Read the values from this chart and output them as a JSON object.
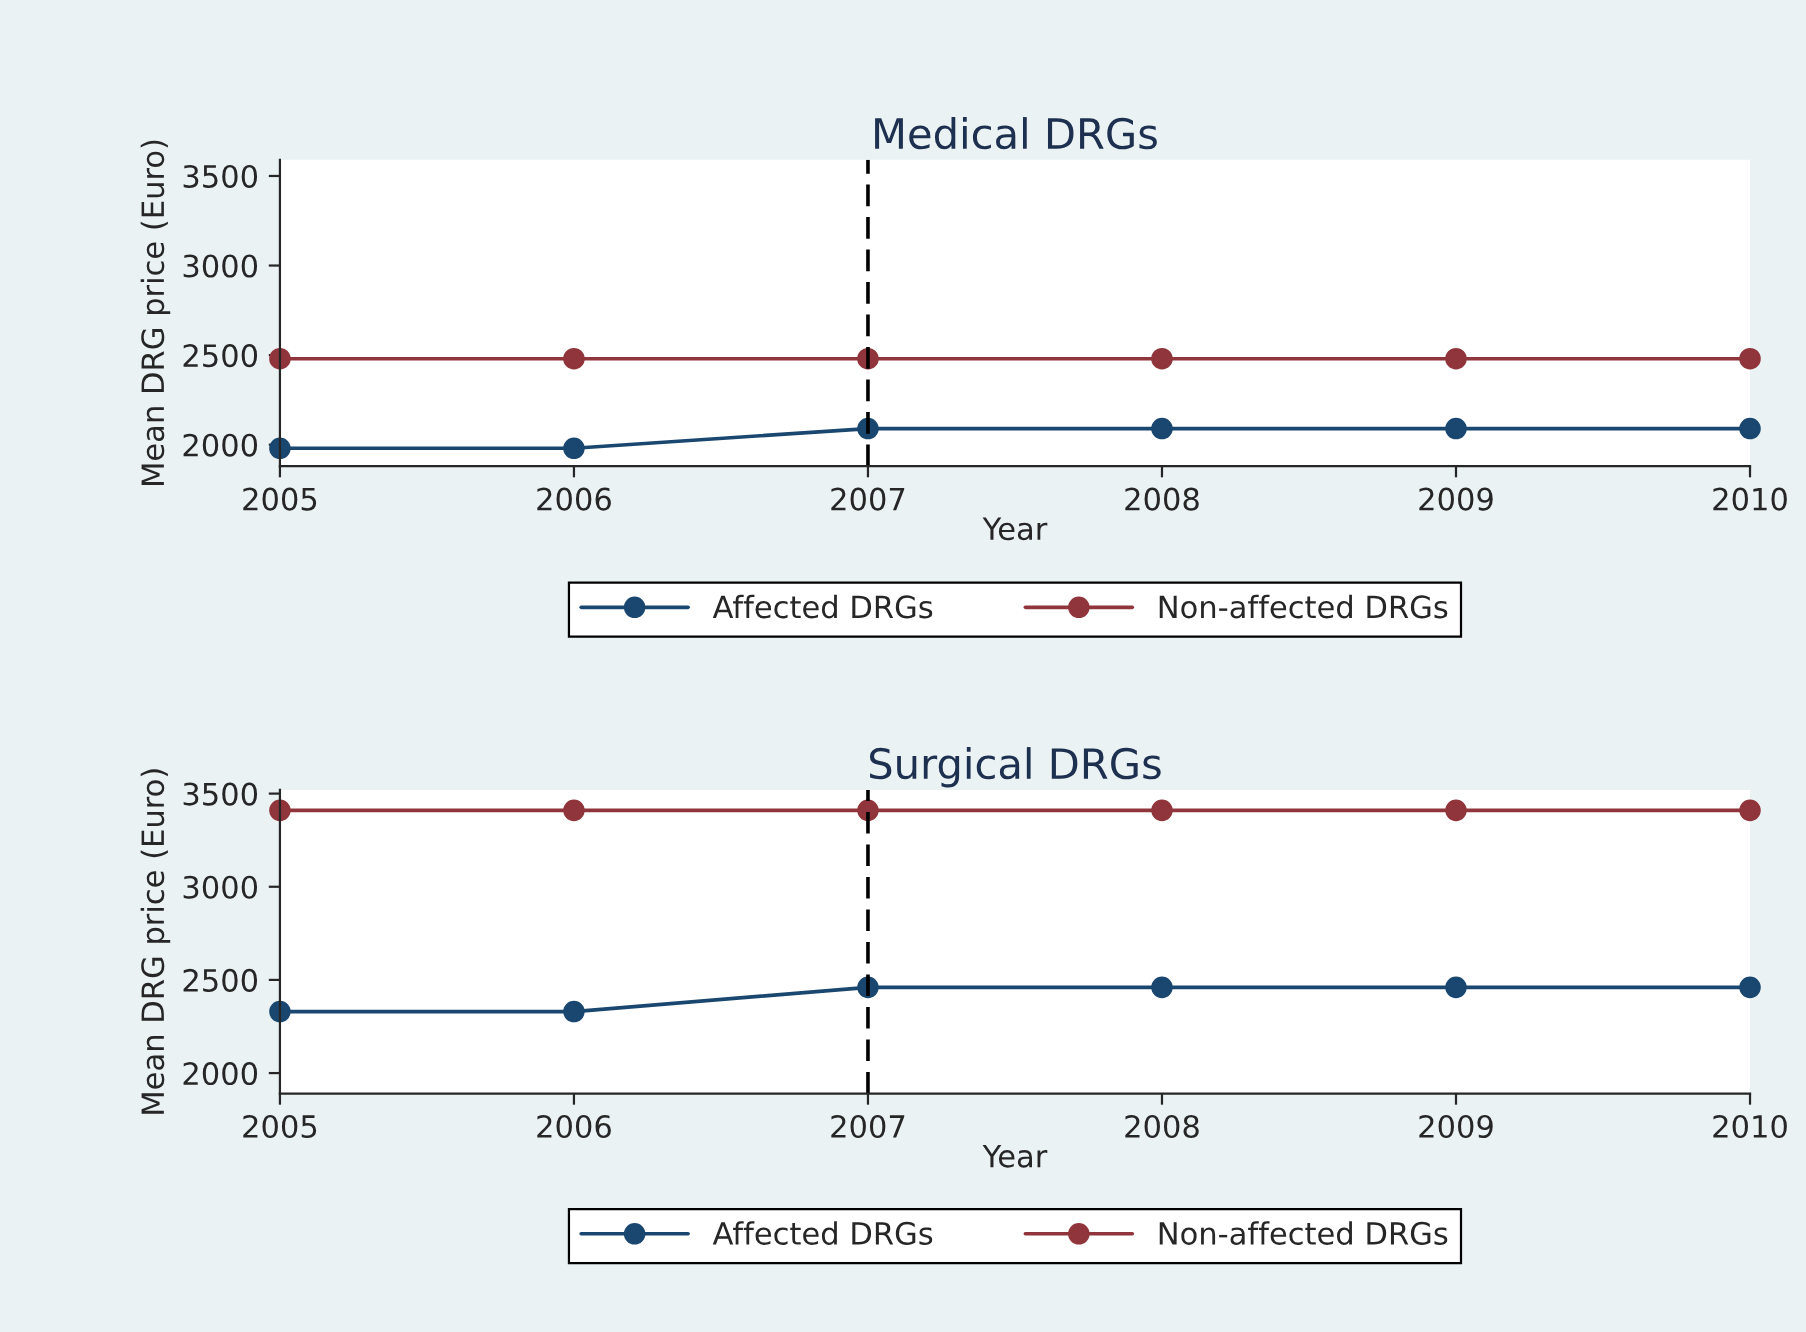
{
  "chart_data": [
    {
      "type": "line",
      "title": "Medical DRGs",
      "xlabel": "Year",
      "ylabel": "Mean DRG price (Euro)",
      "x": [
        2005,
        2006,
        2007,
        2008,
        2009,
        2010
      ],
      "series": [
        {
          "name": "Affected DRGs",
          "color": "#1a476f",
          "values": [
            1980,
            1980,
            2090,
            2090,
            2090,
            2090
          ]
        },
        {
          "name": "Non-affected DRGs",
          "color": "#90353b",
          "values": [
            2480,
            2480,
            2480,
            2480,
            2480,
            2480
          ]
        }
      ],
      "xlim": [
        2005,
        2010
      ],
      "xticks": [
        2005,
        2006,
        2007,
        2008,
        2009,
        2010
      ],
      "ylim": [
        1880,
        3590
      ],
      "yticks": [
        2000,
        2500,
        3000,
        3500
      ],
      "ref_lines": [
        {
          "axis": "x",
          "value": 2007,
          "color": "#000000",
          "line_style": "dashed"
        }
      ],
      "marker": "circle",
      "grid": false,
      "legend": "bottom"
    },
    {
      "type": "line",
      "title": "Surgical DRGs",
      "xlabel": "Year",
      "ylabel": "Mean DRG price (Euro)",
      "x": [
        2005,
        2006,
        2007,
        2008,
        2009,
        2010
      ],
      "series": [
        {
          "name": "Affected DRGs",
          "color": "#1a476f",
          "values": [
            2330,
            2330,
            2460,
            2460,
            2460,
            2460
          ]
        },
        {
          "name": "Non-affected DRGs",
          "color": "#90353b",
          "values": [
            3410,
            3410,
            3410,
            3410,
            3410,
            3410
          ]
        }
      ],
      "xlim": [
        2005,
        2010
      ],
      "xticks": [
        2005,
        2006,
        2007,
        2008,
        2009,
        2010
      ],
      "ylim": [
        1890,
        3520
      ],
      "yticks": [
        2000,
        2500,
        3000,
        3500
      ],
      "ref_lines": [
        {
          "axis": "x",
          "value": 2007,
          "color": "#000000",
          "line_style": "dashed"
        }
      ],
      "marker": "circle",
      "grid": false,
      "legend": "bottom"
    }
  ]
}
